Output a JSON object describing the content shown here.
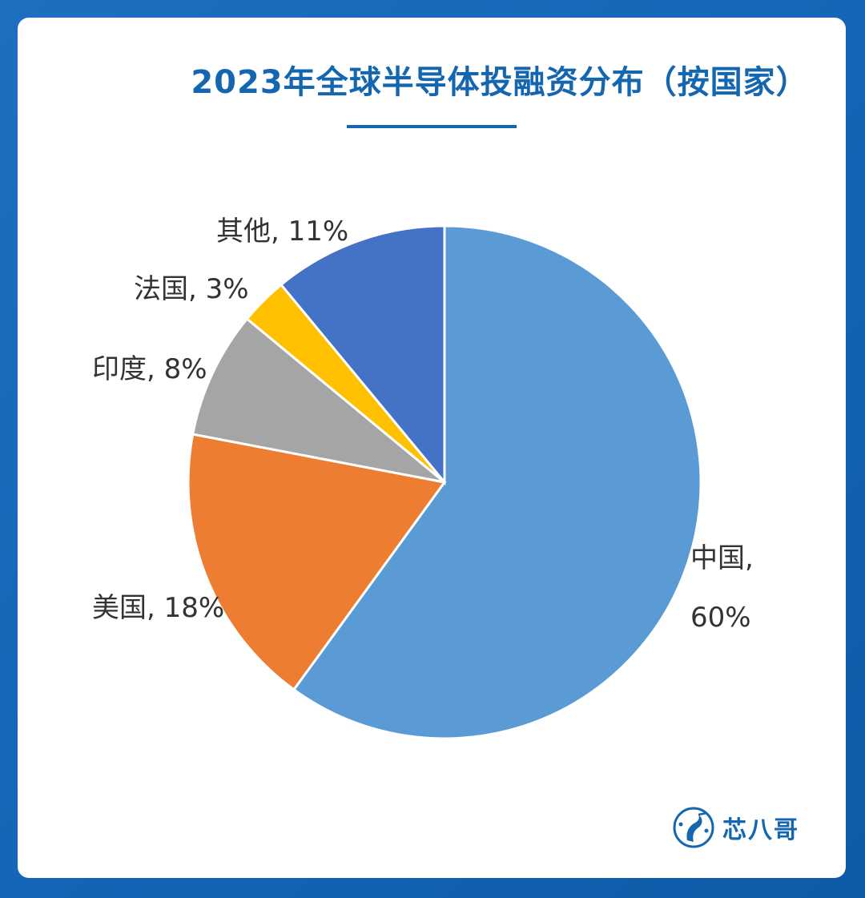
{
  "title": "2023年全球半导体投融资分布（按国家）",
  "brand": {
    "name": "芯八哥",
    "logo_icon": "heron-circle-icon"
  },
  "colors": {
    "accent": "#1466b0",
    "background": "#1565b8"
  },
  "chart_data": {
    "type": "pie",
    "title": "2023年全球半导体投融资分布（按国家）",
    "start": "12 o'clock",
    "direction": "clockwise",
    "slices": [
      {
        "category": "中国",
        "value": 60,
        "color": "#5b9bd5",
        "label_lines": [
          "中国,",
          "60%"
        ]
      },
      {
        "category": "美国",
        "value": 18,
        "color": "#ed7d31",
        "label_lines": [
          "美国, 18%"
        ]
      },
      {
        "category": "印度",
        "value": 8,
        "color": "#a5a5a5",
        "label_lines": [
          "印度, 8%"
        ]
      },
      {
        "category": "法国",
        "value": 3,
        "color": "#ffc000",
        "label_lines": [
          "法国, 3%"
        ]
      },
      {
        "category": "其他",
        "value": 11,
        "color": "#4472c4",
        "label_lines": [
          "其他, 11%"
        ]
      }
    ]
  }
}
